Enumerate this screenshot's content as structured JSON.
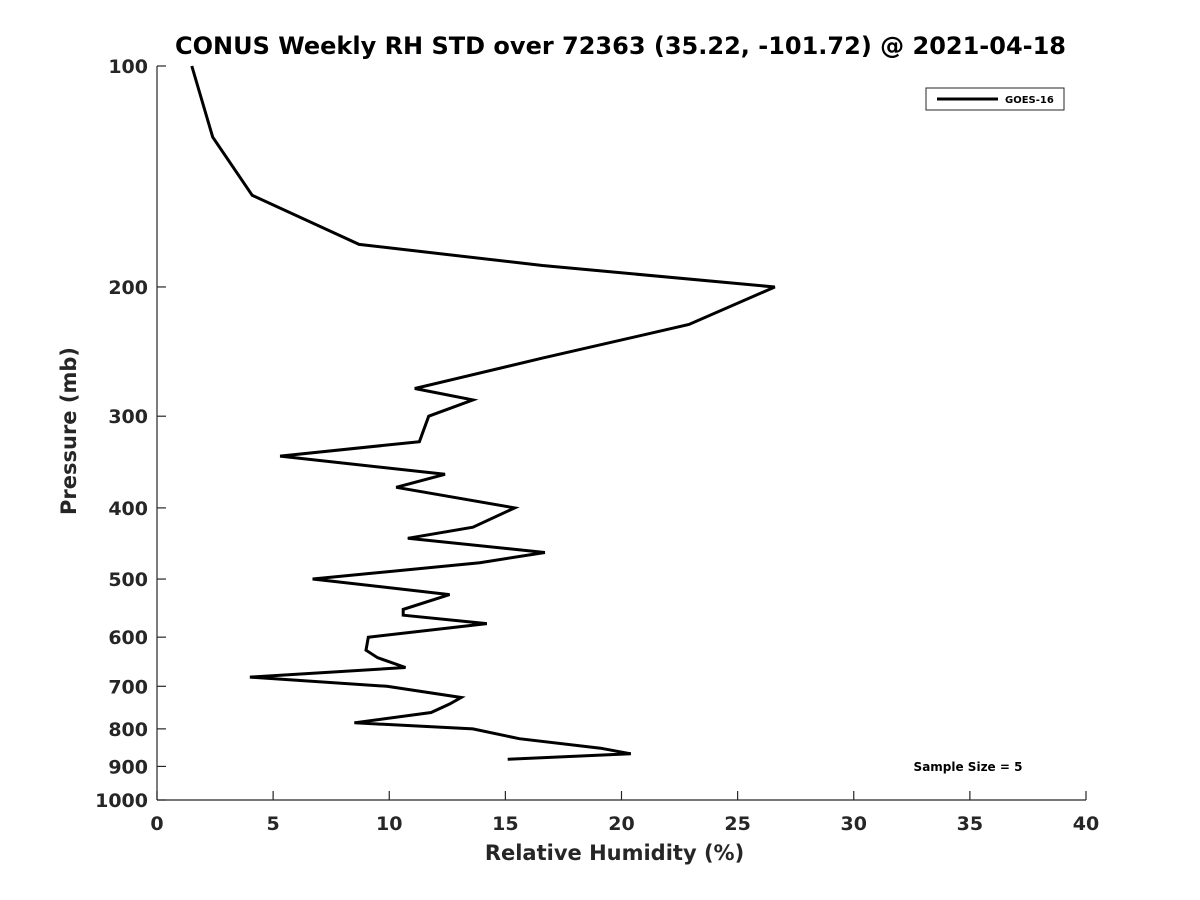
{
  "chart_data": {
    "type": "line",
    "title": "CONUS Weekly RH STD over 72363 (35.22, -101.72) @ 2021-04-18",
    "xlabel": "Relative Humidity (%)",
    "ylabel": "Pressure (mb)",
    "xlim": [
      0,
      40
    ],
    "ylim": [
      100,
      1000
    ],
    "y_scale": "log",
    "y_reversed": true,
    "xticks": [
      0,
      5,
      10,
      15,
      20,
      25,
      30,
      35,
      40
    ],
    "yticks": [
      100,
      200,
      300,
      400,
      500,
      600,
      700,
      800,
      900,
      1000
    ],
    "grid": false,
    "legend_position": "top-right",
    "series": [
      {
        "name": "GOES-16",
        "color": "#000000",
        "points": [
          {
            "x": 1.5,
            "y": 100
          },
          {
            "x": 2.4,
            "y": 125
          },
          {
            "x": 4.1,
            "y": 150
          },
          {
            "x": 8.7,
            "y": 175
          },
          {
            "x": 16.6,
            "y": 187
          },
          {
            "x": 26.6,
            "y": 200
          },
          {
            "x": 22.9,
            "y": 225
          },
          {
            "x": 16.6,
            "y": 250
          },
          {
            "x": 11.1,
            "y": 275
          },
          {
            "x": 13.6,
            "y": 285
          },
          {
            "x": 11.7,
            "y": 300
          },
          {
            "x": 11.3,
            "y": 325
          },
          {
            "x": 5.3,
            "y": 340
          },
          {
            "x": 12.4,
            "y": 360
          },
          {
            "x": 10.3,
            "y": 375
          },
          {
            "x": 15.4,
            "y": 400
          },
          {
            "x": 13.6,
            "y": 425
          },
          {
            "x": 10.8,
            "y": 440
          },
          {
            "x": 16.7,
            "y": 460
          },
          {
            "x": 13.9,
            "y": 475
          },
          {
            "x": 6.7,
            "y": 500
          },
          {
            "x": 12.6,
            "y": 525
          },
          {
            "x": 10.6,
            "y": 550
          },
          {
            "x": 10.6,
            "y": 560
          },
          {
            "x": 14.2,
            "y": 575
          },
          {
            "x": 9.1,
            "y": 600
          },
          {
            "x": 9.0,
            "y": 625
          },
          {
            "x": 9.5,
            "y": 640
          },
          {
            "x": 10.7,
            "y": 660
          },
          {
            "x": 4.0,
            "y": 680
          },
          {
            "x": 9.9,
            "y": 700
          },
          {
            "x": 13.1,
            "y": 725
          },
          {
            "x": 12.6,
            "y": 740
          },
          {
            "x": 11.8,
            "y": 760
          },
          {
            "x": 8.5,
            "y": 785
          },
          {
            "x": 13.6,
            "y": 800
          },
          {
            "x": 15.6,
            "y": 825
          },
          {
            "x": 19.1,
            "y": 850
          },
          {
            "x": 20.4,
            "y": 865
          },
          {
            "x": 15.1,
            "y": 880
          }
        ]
      }
    ],
    "annotations": [
      "Sample Size = 5"
    ]
  }
}
